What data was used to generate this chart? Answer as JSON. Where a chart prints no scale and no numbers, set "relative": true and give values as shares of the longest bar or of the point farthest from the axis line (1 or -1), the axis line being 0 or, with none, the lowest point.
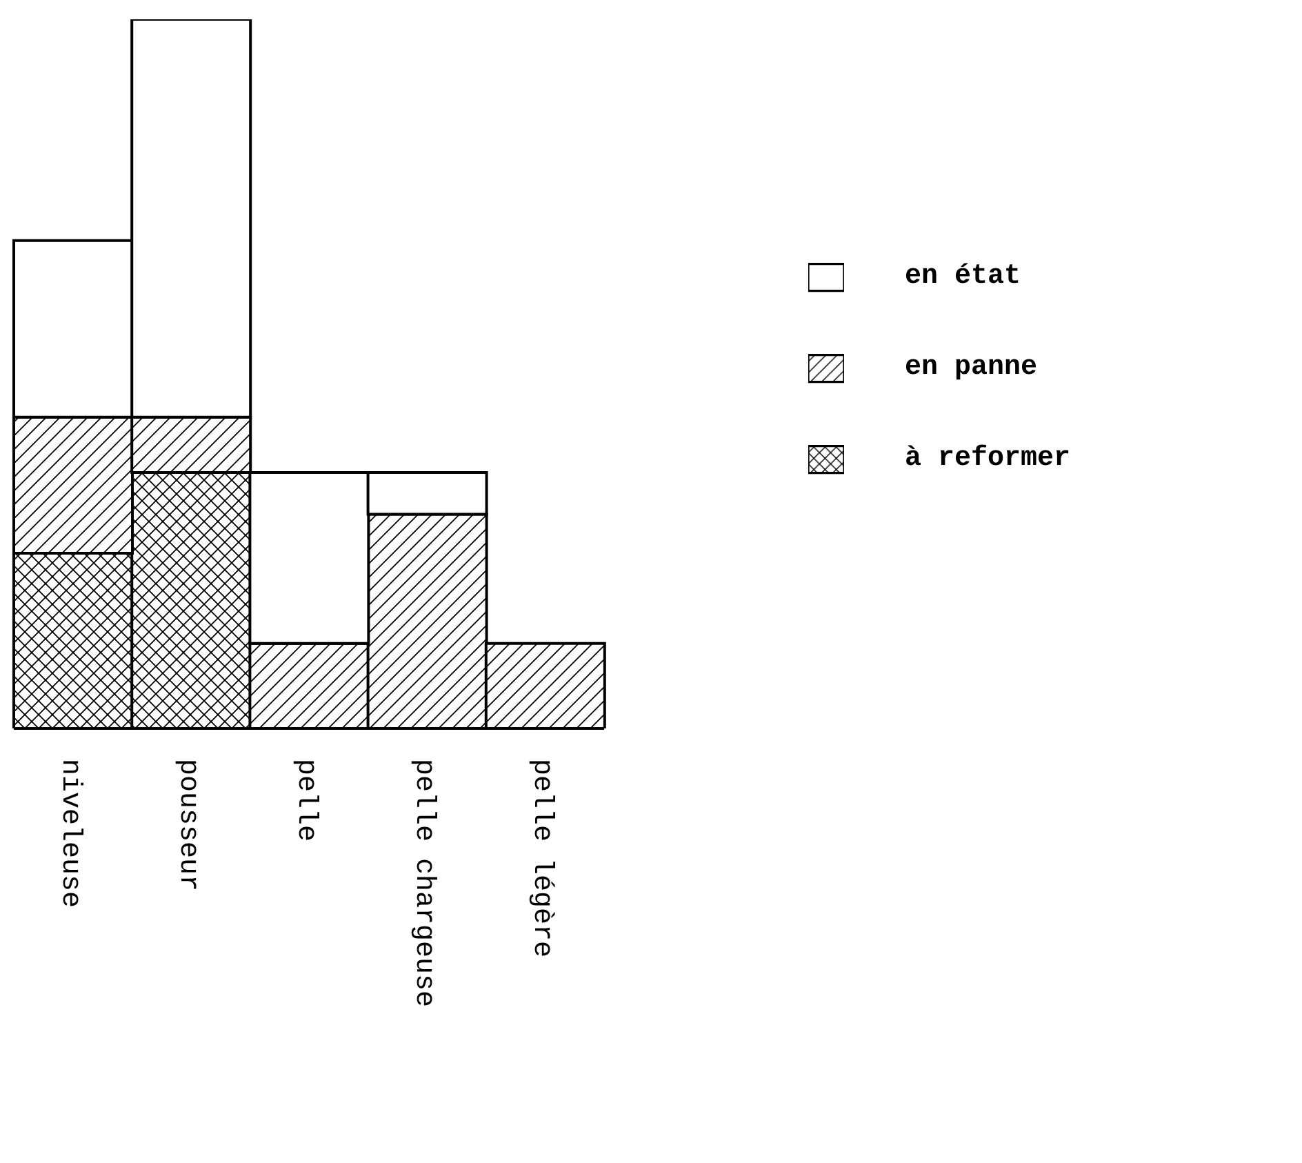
{
  "chart_data": {
    "type": "bar",
    "stacked": true,
    "relative": true,
    "legend": "right",
    "categories": [
      "niveleuse",
      "pousseur",
      "pelle",
      "pelle chargeuse",
      "pelle légère"
    ],
    "series": [
      {
        "name": "à reformer",
        "color": "#000000",
        "values": [
          0.247,
          0.361,
          0,
          0,
          0
        ]
      },
      {
        "name": "en panne",
        "color": "#000000",
        "values": [
          0.192,
          0.078,
          0.12,
          0.302,
          0.12
        ]
      },
      {
        "name": "en état",
        "color": "#ffffff",
        "values": [
          0.249,
          0.561,
          0.241,
          0.059,
          0
        ]
      }
    ]
  }
}
